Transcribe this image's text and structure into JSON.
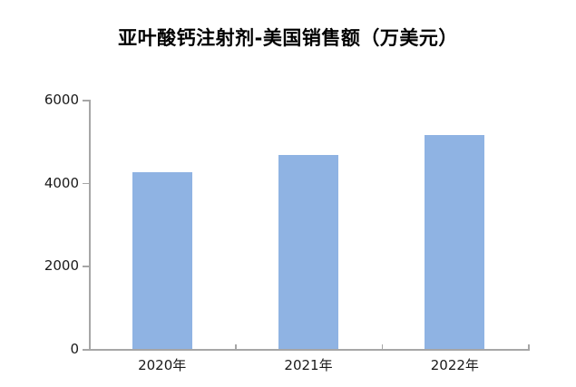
{
  "chart_data": {
    "type": "bar",
    "title": "亚叶酸钙注射剂-美国销售额（万美元）",
    "categories": [
      "2020年",
      "2021年",
      "2022年"
    ],
    "values": [
      4260,
      4660,
      5160
    ],
    "xlabel": "",
    "ylabel": "",
    "ylim": [
      0,
      6000
    ],
    "yticks": [
      0,
      2000,
      4000,
      6000
    ],
    "grid": false,
    "legend": false,
    "bar_color": "#8FB3E3",
    "axis_color": "#A6A6A6",
    "text_color": "#1A1A1A"
  }
}
